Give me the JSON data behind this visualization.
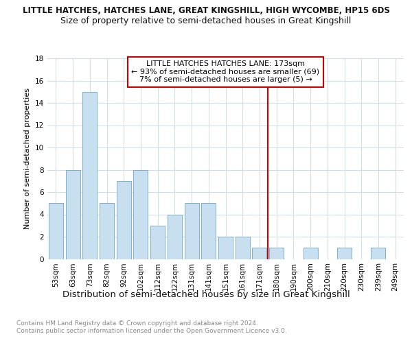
{
  "title1": "LITTLE HATCHES, HATCHES LANE, GREAT KINGSHILL, HIGH WYCOMBE, HP15 6DS",
  "title2": "Size of property relative to semi-detached houses in Great Kingshill",
  "xlabel": "Distribution of semi-detached houses by size in Great Kingshill",
  "ylabel": "Number of semi-detached properties",
  "categories": [
    "53sqm",
    "63sqm",
    "73sqm",
    "82sqm",
    "92sqm",
    "102sqm",
    "112sqm",
    "122sqm",
    "131sqm",
    "141sqm",
    "151sqm",
    "161sqm",
    "171sqm",
    "180sqm",
    "190sqm",
    "200sqm",
    "210sqm",
    "220sqm",
    "230sqm",
    "239sqm",
    "249sqm"
  ],
  "values": [
    5,
    8,
    15,
    5,
    7,
    8,
    3,
    4,
    5,
    5,
    2,
    2,
    1,
    1,
    0,
    1,
    0,
    1,
    0,
    1,
    0
  ],
  "bar_color": "#c8dff0",
  "bar_edge_color": "#7ab0d4",
  "vline_index": 12.5,
  "annotation_line1": "LITTLE HATCHES HATCHES LANE: 173sqm",
  "annotation_line2": "← 93% of semi-detached houses are smaller (69)",
  "annotation_line3": "7% of semi-detached houses are larger (5) →",
  "vline_color": "#cc0000",
  "box_edge_color": "#cc0000",
  "ylim": [
    0,
    18
  ],
  "yticks": [
    0,
    2,
    4,
    6,
    8,
    10,
    12,
    14,
    16,
    18
  ],
  "footer": "Contains HM Land Registry data © Crown copyright and database right 2024.\nContains public sector information licensed under the Open Government Licence v3.0.",
  "bg_color": "#ffffff",
  "grid_color": "#d0dce8",
  "title1_fontsize": 8.5,
  "title2_fontsize": 9.0,
  "ylabel_fontsize": 8.0,
  "xlabel_fontsize": 9.5,
  "tick_fontsize": 7.5,
  "annotation_fontsize": 8.0,
  "footer_fontsize": 6.5
}
